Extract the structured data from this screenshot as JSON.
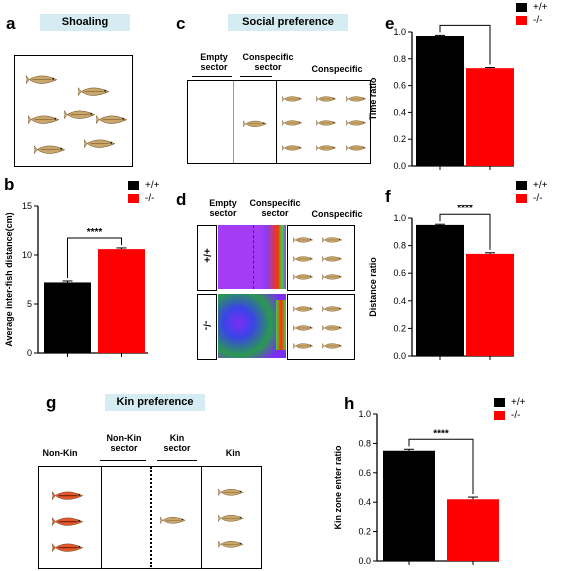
{
  "panels": {
    "a": {
      "letter": "a",
      "banner": "Shoaling"
    },
    "b": {
      "letter": "b"
    },
    "c": {
      "letter": "c",
      "banner": "Social preference",
      "empty_sector": "Empty\nsector",
      "conspecific_sector": "Conspecific\nsector",
      "conspecific": "Conspecific"
    },
    "d": {
      "letter": "d",
      "empty_sector": "Empty\nsector",
      "conspecific_sector": "Conspecific\nsector",
      "conspecific": "Conspecific",
      "row_wt": "+/+",
      "row_ko": "-/-"
    },
    "e": {
      "letter": "e"
    },
    "f": {
      "letter": "f"
    },
    "g": {
      "letter": "g",
      "banner": "Kin preference",
      "non_kin": "Non-Kin",
      "non_kin_sector": "Non-Kin\nsector",
      "kin_sector": "Kin\nsector",
      "kin": "Kin"
    },
    "h": {
      "letter": "h"
    }
  },
  "legend": [
    {
      "label": "+/+",
      "color": "#000000"
    },
    {
      "label": "-/-",
      "color": "#ff0000"
    }
  ],
  "significance": "****",
  "colors": {
    "wt": "#000000",
    "ko": "#ff0000",
    "banner": "#d6ecf3"
  },
  "chart_data": [
    {
      "id": "b",
      "type": "bar",
      "categories": [
        "+/+",
        "-/-"
      ],
      "values": [
        7.2,
        10.6
      ],
      "errors": [
        0.15,
        0.12
      ],
      "ylabel": "Average inter-fish distance(cm)",
      "ylim": [
        0,
        15
      ],
      "yticks": [
        0,
        5,
        10,
        15
      ],
      "annotation": "****"
    },
    {
      "id": "e",
      "type": "bar",
      "categories": [
        "+/+",
        "-/-"
      ],
      "values": [
        0.97,
        0.73
      ],
      "errors": [
        0.005,
        0.005
      ],
      "ylabel": "Time ratio",
      "ylim": [
        0,
        1.0
      ],
      "yticks": [
        0.0,
        0.2,
        0.4,
        0.6,
        0.8,
        1.0
      ],
      "annotation": "****"
    },
    {
      "id": "f",
      "type": "bar",
      "categories": [
        "+/+",
        "-/-"
      ],
      "values": [
        0.95,
        0.74
      ],
      "errors": [
        0.005,
        0.008
      ],
      "ylabel": "Distance ratio",
      "ylim": [
        0,
        1.0
      ],
      "yticks": [
        0.0,
        0.2,
        0.4,
        0.6,
        0.8,
        1.0
      ],
      "annotation": "****"
    },
    {
      "id": "h",
      "type": "bar",
      "categories": [
        "+/+",
        "-/-"
      ],
      "values": [
        0.75,
        0.42
      ],
      "errors": [
        0.01,
        0.015
      ],
      "ylabel": "Kin zone enter ratio",
      "ylim": [
        0,
        1.0
      ],
      "yticks": [
        0.0,
        0.2,
        0.4,
        0.6,
        0.8,
        1.0
      ],
      "annotation": "****"
    }
  ]
}
